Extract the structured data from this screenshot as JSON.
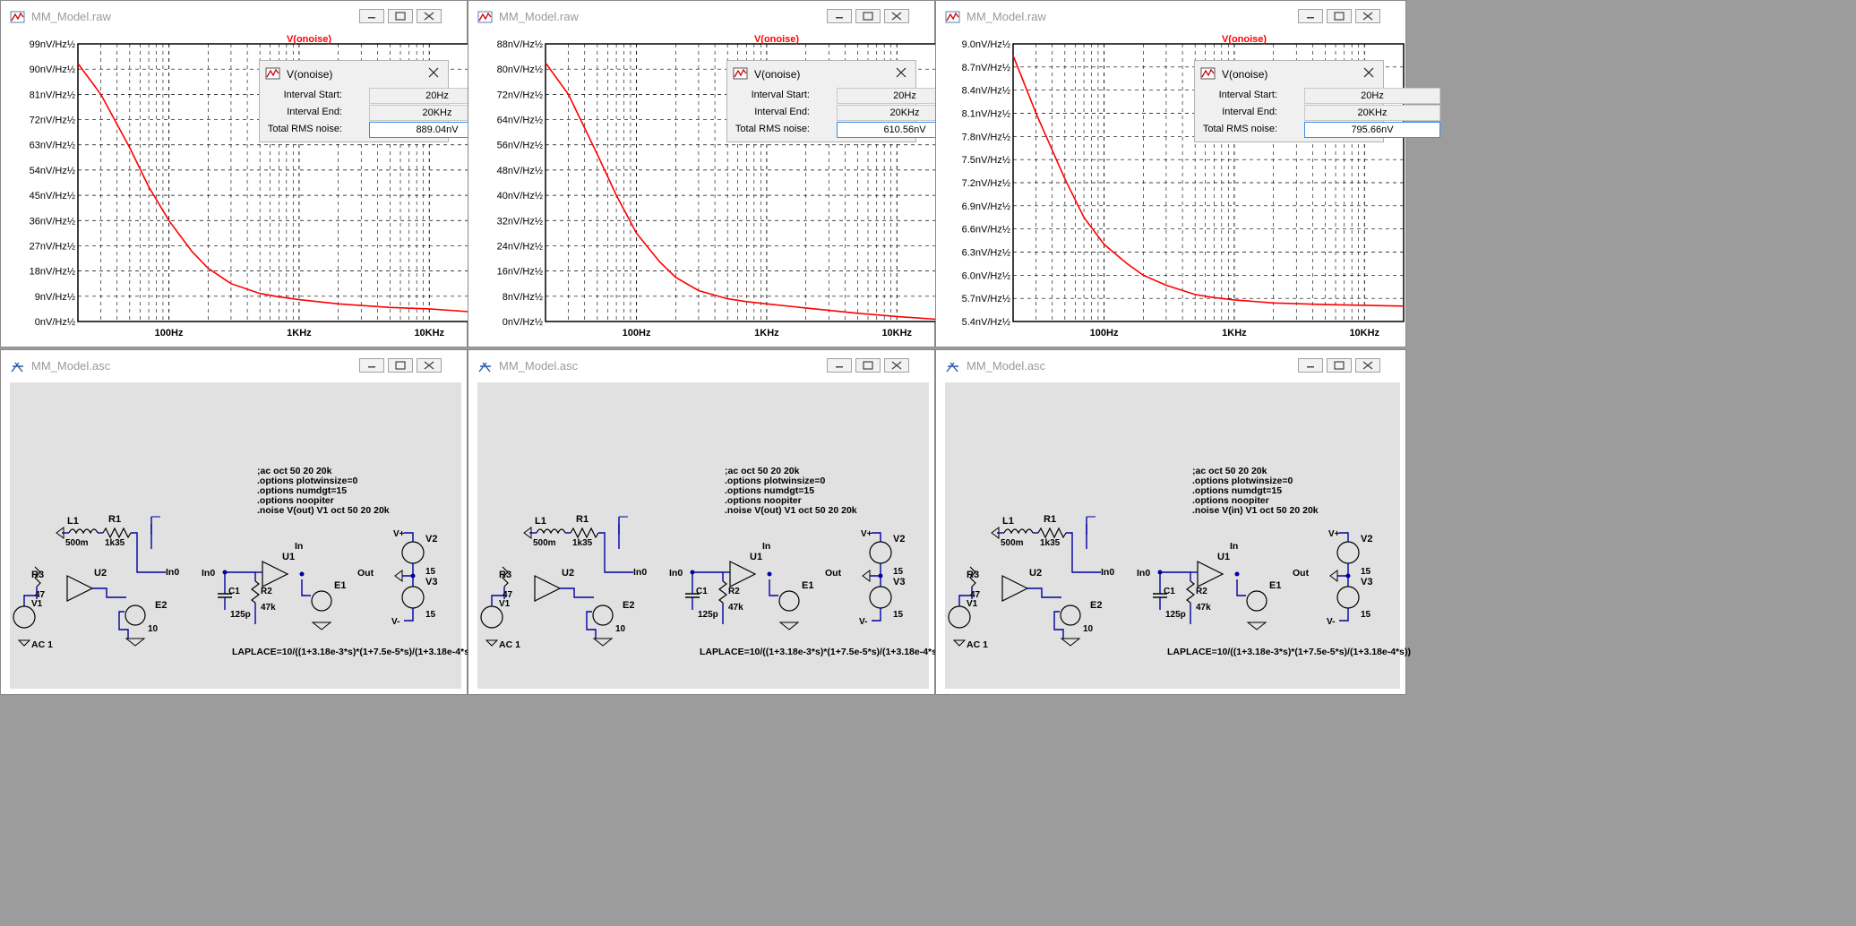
{
  "colors": {
    "trace": "#ff0000",
    "grid": "#000000",
    "wire": "#0000a0",
    "title_red": "#ff0000"
  },
  "raw_title": "MM_Model.raw",
  "asc_title": "MM_Model.asc",
  "x_ticks": [
    "100Hz",
    "1KHz",
    "10KHz"
  ],
  "plots": [
    {
      "trace_name": "V(onoise)",
      "y_labels": [
        "99nV/Hz½",
        "90nV/Hz½",
        "81nV/Hz½",
        "72nV/Hz½",
        "63nV/Hz½",
        "54nV/Hz½",
        "45nV/Hz½",
        "36nV/Hz½",
        "27nV/Hz½",
        "18nV/Hz½",
        "9nV/Hz½",
        "0nV/Hz½"
      ],
      "dialog": {
        "title": "V(onoise)",
        "interval_start_label": "Interval Start:",
        "interval_start": "20Hz",
        "interval_end_label": "Interval End:",
        "interval_end": "20KHz",
        "rms_label": "Total RMS noise:",
        "rms": "889.04nV"
      }
    },
    {
      "trace_name": "V(onoise)",
      "y_labels": [
        "88nV/Hz½",
        "80nV/Hz½",
        "72nV/Hz½",
        "64nV/Hz½",
        "56nV/Hz½",
        "48nV/Hz½",
        "40nV/Hz½",
        "32nV/Hz½",
        "24nV/Hz½",
        "16nV/Hz½",
        "8nV/Hz½",
        "0nV/Hz½"
      ],
      "dialog": {
        "title": "V(onoise)",
        "interval_start_label": "Interval Start:",
        "interval_start": "20Hz",
        "interval_end_label": "Interval End:",
        "interval_end": "20KHz",
        "rms_label": "Total RMS noise:",
        "rms": "610.56nV"
      }
    },
    {
      "trace_name": "V(onoise)",
      "y_labels": [
        "9.0nV/Hz½",
        "8.7nV/Hz½",
        "8.4nV/Hz½",
        "8.1nV/Hz½",
        "7.8nV/Hz½",
        "7.5nV/Hz½",
        "7.2nV/Hz½",
        "6.9nV/Hz½",
        "6.6nV/Hz½",
        "6.3nV/Hz½",
        "6.0nV/Hz½",
        "5.7nV/Hz½",
        "5.4nV/Hz½"
      ],
      "dialog": {
        "title": "V(onoise)",
        "interval_start_label": "Interval Start:",
        "interval_start": "20Hz",
        "interval_end_label": "Interval End:",
        "interval_end": "20KHz",
        "rms_label": "Total RMS noise:",
        "rms": "795.66nV"
      }
    }
  ],
  "chart_data": [
    {
      "type": "line",
      "title": "V(onoise)",
      "xscale": "log",
      "xlim": [
        20,
        20000
      ],
      "ylim": [
        0,
        99
      ],
      "y_unit": "nV/Hz½",
      "series": [
        {
          "name": "V(onoise)",
          "x": [
            20,
            30,
            50,
            70,
            100,
            150,
            200,
            300,
            500,
            700,
            1000,
            2000,
            5000,
            10000,
            20000
          ],
          "y": [
            92,
            81,
            62,
            48,
            36,
            25,
            19,
            13.5,
            10,
            8.8,
            7.8,
            6.3,
            5,
            4.5,
            3.5
          ]
        }
      ]
    },
    {
      "type": "line",
      "title": "V(onoise)",
      "xscale": "log",
      "xlim": [
        20,
        20000
      ],
      "ylim": [
        0,
        88
      ],
      "y_unit": "nV/Hz½",
      "series": [
        {
          "name": "V(onoise)",
          "x": [
            20,
            30,
            50,
            70,
            100,
            150,
            200,
            300,
            500,
            700,
            1000,
            2000,
            5000,
            10000,
            20000
          ],
          "y": [
            82,
            72,
            53,
            40,
            28,
            19,
            14,
            9.8,
            7.2,
            6.3,
            5.6,
            4.3,
            2.6,
            1.6,
            0.7
          ]
        }
      ]
    },
    {
      "type": "line",
      "title": "V(onoise)",
      "xscale": "log",
      "xlim": [
        20,
        20000
      ],
      "ylim": [
        5.4,
        9.0
      ],
      "y_unit": "nV/Hz½",
      "series": [
        {
          "name": "V(onoise)",
          "x": [
            20,
            30,
            50,
            70,
            100,
            150,
            200,
            300,
            500,
            700,
            1000,
            2000,
            5000,
            10000,
            20000
          ],
          "y": [
            8.85,
            8.1,
            7.25,
            6.75,
            6.4,
            6.15,
            6.0,
            5.87,
            5.75,
            5.71,
            5.68,
            5.64,
            5.62,
            5.61,
            5.6
          ]
        }
      ]
    }
  ],
  "schematics": [
    {
      "directives": [
        ";ac oct 50 20 20k",
        ".options plotwinsize=0",
        ".options numdgt=15",
        ".options noopiter",
        ".noise V(out) V1 oct 50 20 20k"
      ]
    },
    {
      "directives": [
        ";ac oct 50 20 20k",
        ".options plotwinsize=0",
        ".options numdgt=15",
        ".options noopiter",
        ".noise V(out) V1 oct 50 20 20k"
      ]
    },
    {
      "directives": [
        ";ac oct 50 20 20k",
        ".options plotwinsize=0",
        ".options numdgt=15",
        ".options noopiter",
        ".noise V(in) V1 oct 50 20 20k"
      ]
    }
  ],
  "schematic_labels": {
    "l1": "L1",
    "l1_val": "500m",
    "r1": "R1",
    "r1_val": "1k35",
    "r3": "R3",
    "r3_val": "47",
    "v1": "V1",
    "ac": "AC 1",
    "u2": "U2",
    "e2": "E2",
    "e2_val": "10",
    "in0": "In0",
    "in": "In",
    "u1": "U1",
    "out": "Out",
    "c1": "C1",
    "c1_val": "125p",
    "r2": "R2",
    "r2_val": "47k",
    "e1": "E1",
    "vplus": "V+",
    "vminus": "V-",
    "v2": "V2",
    "v2_val": "15",
    "v3": "V3",
    "v3_val": "15",
    "laplace": "LAPLACE=10/((1+3.18e-3*s)*(1+7.5e-5*s)/(1+3.18e-4*s))"
  }
}
